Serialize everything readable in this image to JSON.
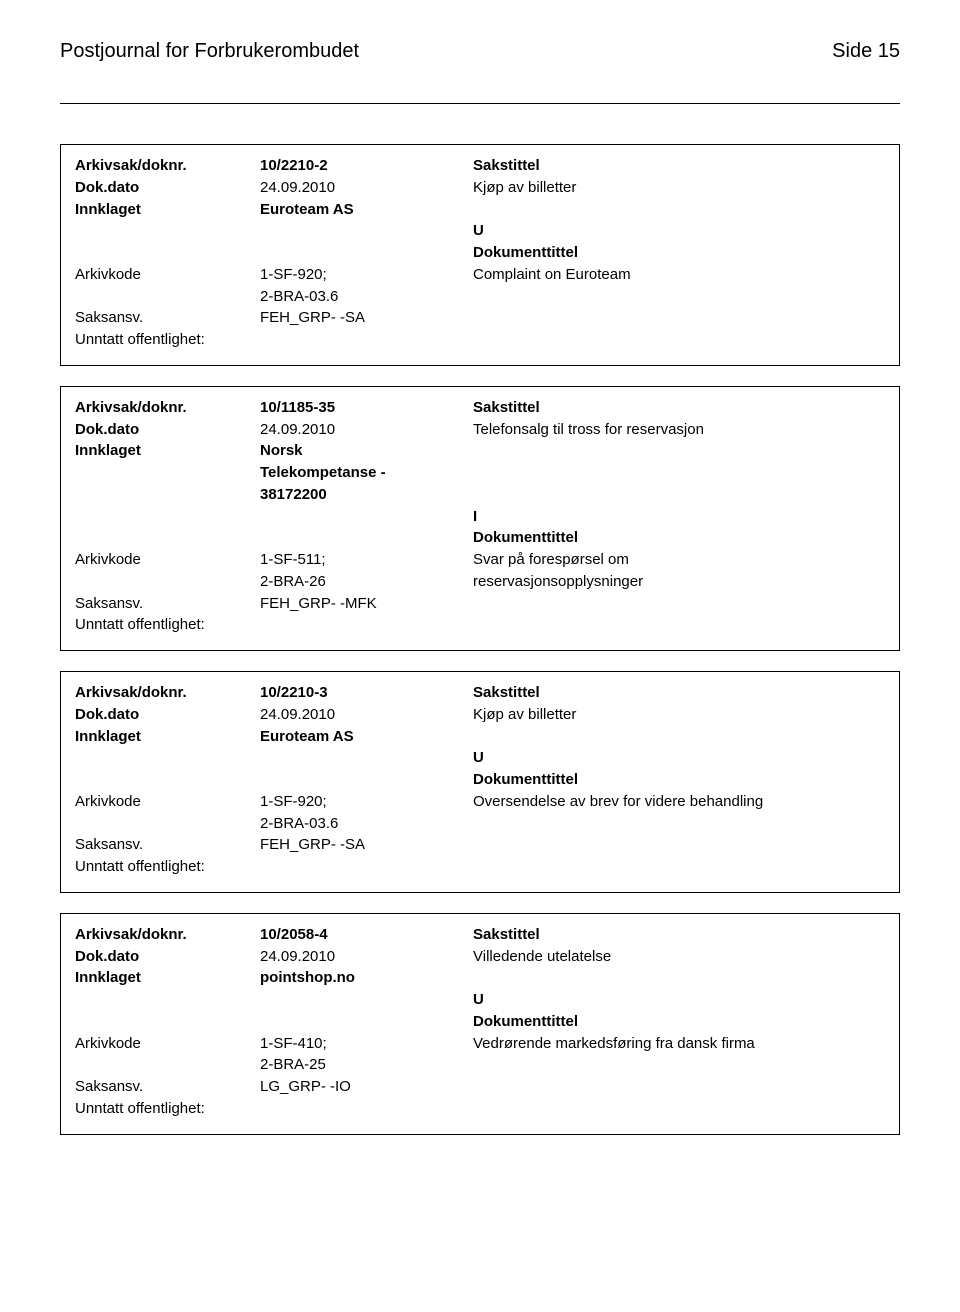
{
  "header": {
    "title": "Postjournal for Forbrukerombudet",
    "page": "Side 15"
  },
  "labels": {
    "arkivsak": "Arkivsak/doknr.",
    "dokdato": "Dok.dato",
    "innklaget": "Innklaget",
    "arkivkode": "Arkivkode",
    "saksansv": "Saksansv.",
    "unntatt": "Unntatt offentlighet:",
    "sakstittel": "Sakstittel",
    "dokumenttittel": "Dokumenttittel"
  },
  "entries": [
    {
      "arkivsak": "10/2210-2",
      "dokdato": "24.09.2010",
      "innklaget": [
        "Euroteam AS"
      ],
      "arkivkode": [
        "1-SF-920;",
        "2-BRA-03.6"
      ],
      "saksansv": "FEH_GRP- -SA",
      "sakstittel": "Kjøp av billetter",
      "direction": "U",
      "dokumenttittel": [
        "Complaint on Euroteam"
      ]
    },
    {
      "arkivsak": "10/1185-35",
      "dokdato": "24.09.2010",
      "innklaget": [
        "Norsk",
        "Telekompetanse -",
        "38172200"
      ],
      "arkivkode": [
        "1-SF-511;",
        "2-BRA-26"
      ],
      "saksansv": "FEH_GRP- -MFK",
      "sakstittel": "Telefonsalg til tross for reservasjon",
      "direction": "I",
      "dokumenttittel": [
        "Svar på forespørsel om",
        "reservasjonsopplysninger"
      ]
    },
    {
      "arkivsak": "10/2210-3",
      "dokdato": "24.09.2010",
      "innklaget": [
        "Euroteam AS"
      ],
      "arkivkode": [
        "1-SF-920;",
        "2-BRA-03.6"
      ],
      "saksansv": "FEH_GRP- -SA",
      "sakstittel": "Kjøp av billetter",
      "direction": "U",
      "dokumenttittel": [
        "Oversendelse av brev for videre behandling"
      ]
    },
    {
      "arkivsak": "10/2058-4",
      "dokdato": "24.09.2010",
      "innklaget": [
        "pointshop.no"
      ],
      "arkivkode": [
        "1-SF-410;",
        "2-BRA-25"
      ],
      "saksansv": "LG_GRP- -IO",
      "sakstittel": "Villedende utelatelse",
      "direction": "U",
      "dokumenttittel": [
        "Vedrørende markedsføring fra dansk firma"
      ]
    }
  ]
}
